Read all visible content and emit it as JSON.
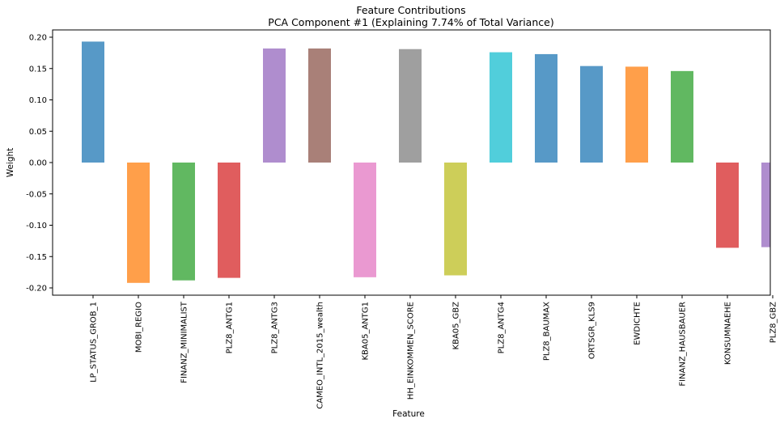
{
  "chart_data": {
    "type": "bar",
    "title": "Feature Contributions",
    "subtitle": "PCA Component #1 (Explaining 7.74% of Total Variance)",
    "xlabel": "Feature",
    "ylabel": "Weight",
    "ylim": [
      -0.212,
      0.212
    ],
    "yticks": [
      "-0.20",
      "-0.15",
      "-0.10",
      "-0.05",
      "0.00",
      "0.05",
      "0.10",
      "0.15",
      "0.20"
    ],
    "ytick_values": [
      -0.2,
      -0.15,
      -0.1,
      -0.05,
      0.0,
      0.05,
      0.1,
      0.15,
      0.2
    ],
    "grid": false,
    "legend": "none",
    "bar_opacity": 0.75,
    "categories": [
      "LP_STATUS_GROB_1",
      "MOBI_REGIO",
      "FINANZ_MINIMALIST",
      "PLZ8_ANTG1",
      "PLZ8_ANTG3",
      "CAMEO_INTL_2015_wealth",
      "KBA05_ANTG1",
      "HH_EINKOMMEN_SCORE",
      "KBA05_GBZ",
      "PLZ8_ANTG4",
      "PLZ8_BAUMAX",
      "ORTSGR_KLS9",
      "EWDICHTE",
      "FINANZ_HAUSBAUER",
      "KONSUMNAEHE",
      "PLZ8_GBZ"
    ],
    "values": [
      0.193,
      -0.192,
      -0.188,
      -0.184,
      0.182,
      0.182,
      -0.183,
      0.181,
      -0.18,
      0.176,
      0.173,
      0.154,
      0.153,
      0.146,
      -0.136,
      -0.135
    ],
    "colors": [
      "#1f77b4",
      "#ff7f0e",
      "#2ca02c",
      "#d62728",
      "#9467bd",
      "#8c564b",
      "#e377c2",
      "#7f7f7f",
      "#bcbd22",
      "#17becf",
      "#1f77b4",
      "#1f77b4",
      "#ff7f0e",
      "#2ca02c",
      "#d62728",
      "#9467bd"
    ]
  }
}
